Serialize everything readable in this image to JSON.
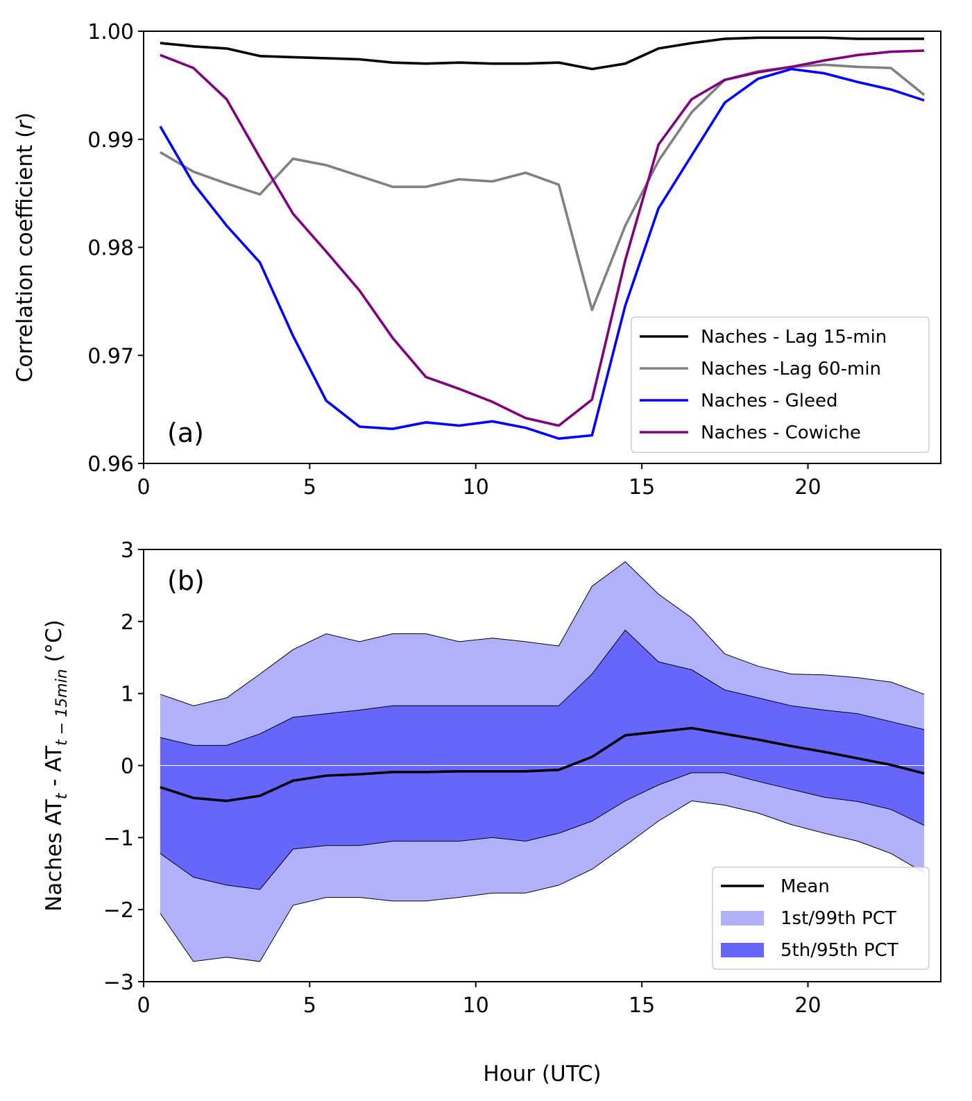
{
  "chart_data": [
    {
      "type": "line",
      "panel_label": "(a)",
      "ylabel": "Correlation coefficient (r)",
      "xlabel": "",
      "xlim": [
        0,
        24
      ],
      "ylim": [
        0.96,
        1.0
      ],
      "xticks": [
        0,
        5,
        10,
        15,
        20
      ],
      "xtick_labels": [
        "0",
        "5",
        "10",
        "15",
        "20"
      ],
      "yticks": [
        0.96,
        0.97,
        0.98,
        0.99,
        1.0
      ],
      "ytick_labels": [
        "0.96",
        "0.97",
        "0.98",
        "0.99",
        "1.00"
      ],
      "legend_position": "lower-right",
      "grid": false,
      "x": [
        0.5,
        1.5,
        2.5,
        3.5,
        4.5,
        5.5,
        6.5,
        7.5,
        8.5,
        9.5,
        10.5,
        11.5,
        12.5,
        13.5,
        14.5,
        15.5,
        16.5,
        17.5,
        18.5,
        19.5,
        20.5,
        21.5,
        22.5,
        23.5
      ],
      "series": [
        {
          "name": "Naches - Lag 15-min",
          "color": "#000000",
          "values": [
            0.9989,
            0.9986,
            0.9984,
            0.9977,
            0.9976,
            0.9975,
            0.9974,
            0.9971,
            0.997,
            0.9971,
            0.997,
            0.997,
            0.9971,
            0.9965,
            0.997,
            0.9984,
            0.9989,
            0.9993,
            0.9994,
            0.9994,
            0.9994,
            0.9993,
            0.9993,
            0.9993
          ]
        },
        {
          "name": "Naches -Lag 60-min",
          "color": "#808080",
          "values": [
            0.9888,
            0.987,
            0.9859,
            0.9849,
            0.9882,
            0.9876,
            0.9866,
            0.9856,
            0.9856,
            0.9863,
            0.9861,
            0.9869,
            0.9858,
            0.9742,
            0.982,
            0.988,
            0.9925,
            0.9955,
            0.9963,
            0.9967,
            0.9969,
            0.9967,
            0.9966,
            0.9941
          ]
        },
        {
          "name": "Naches - Gleed",
          "color": "#0000ff",
          "values": [
            0.9912,
            0.9859,
            0.982,
            0.9786,
            0.9718,
            0.9658,
            0.9634,
            0.9632,
            0.9638,
            0.9635,
            0.9639,
            0.9633,
            0.9623,
            0.9626,
            0.9746,
            0.9836,
            0.9885,
            0.9934,
            0.9956,
            0.9965,
            0.9961,
            0.9953,
            0.9946,
            0.9936
          ]
        },
        {
          "name": "Naches - Cowiche",
          "color": "#800080",
          "values": [
            0.9978,
            0.9966,
            0.9937,
            0.9883,
            0.9831,
            0.9796,
            0.976,
            0.9716,
            0.968,
            0.9669,
            0.9657,
            0.9642,
            0.9635,
            0.9659,
            0.9788,
            0.9895,
            0.9937,
            0.9955,
            0.9962,
            0.9967,
            0.9973,
            0.9978,
            0.9981,
            0.9982
          ]
        }
      ]
    },
    {
      "type": "area",
      "panel_label": "(b)",
      "ylabel_main": "Naches AT",
      "ylabel_sub1": "t",
      "ylabel_mid": " - AT",
      "ylabel_sub2": "t − 15min",
      "ylabel_unit": "  (°C)",
      "xlabel": "Hour (UTC)",
      "xlim": [
        0,
        24
      ],
      "ylim": [
        -3,
        3
      ],
      "xticks": [
        0,
        5,
        10,
        15,
        20
      ],
      "xtick_labels": [
        "0",
        "5",
        "10",
        "15",
        "20"
      ],
      "yticks": [
        -3,
        -2,
        -1,
        0,
        1,
        2,
        3
      ],
      "ytick_labels": [
        "−3",
        "−2",
        "−1",
        "0",
        "1",
        "2",
        "3"
      ],
      "legend_position": "lower-right",
      "grid": false,
      "x": [
        0.5,
        1.5,
        2.5,
        3.5,
        4.5,
        5.5,
        6.5,
        7.5,
        8.5,
        9.5,
        10.5,
        11.5,
        12.5,
        13.5,
        14.5,
        15.5,
        16.5,
        17.5,
        18.5,
        19.5,
        20.5,
        21.5,
        22.5,
        23.5
      ],
      "mean": {
        "name": "Mean",
        "color": "#000000",
        "values": [
          -0.3,
          -0.45,
          -0.49,
          -0.42,
          -0.21,
          -0.14,
          -0.12,
          -0.09,
          -0.09,
          -0.08,
          -0.08,
          -0.08,
          -0.06,
          0.12,
          0.42,
          0.47,
          0.52,
          0.44,
          0.36,
          0.27,
          0.19,
          0.1,
          0.01,
          -0.11
        ]
      },
      "band_outer": {
        "name": "1st/99th PCT",
        "color": "#b0b0fb",
        "upper": [
          0.99,
          0.83,
          0.94,
          1.27,
          1.61,
          1.83,
          1.72,
          1.83,
          1.83,
          1.72,
          1.77,
          1.72,
          1.66,
          2.49,
          2.83,
          2.38,
          2.05,
          1.55,
          1.38,
          1.27,
          1.26,
          1.22,
          1.16,
          0.99
        ],
        "lower": [
          -2.05,
          -2.72,
          -2.66,
          -2.72,
          -1.94,
          -1.83,
          -1.83,
          -1.88,
          -1.88,
          -1.83,
          -1.77,
          -1.77,
          -1.66,
          -1.44,
          -1.11,
          -0.77,
          -0.49,
          -0.55,
          -0.66,
          -0.82,
          -0.94,
          -1.05,
          -1.22,
          -1.49
        ]
      },
      "band_inner": {
        "name": "5th/95th PCT",
        "color": "#6666fd",
        "upper": [
          0.39,
          0.28,
          0.28,
          0.44,
          0.67,
          0.72,
          0.77,
          0.83,
          0.83,
          0.83,
          0.83,
          0.83,
          0.83,
          1.27,
          1.88,
          1.44,
          1.33,
          1.05,
          0.94,
          0.83,
          0.77,
          0.72,
          0.61,
          0.5
        ],
        "lower": [
          -1.22,
          -1.55,
          -1.66,
          -1.72,
          -1.16,
          -1.11,
          -1.11,
          -1.05,
          -1.05,
          -1.05,
          -1.0,
          -1.05,
          -0.94,
          -0.77,
          -0.49,
          -0.27,
          -0.1,
          -0.1,
          -0.22,
          -0.33,
          -0.44,
          -0.5,
          -0.61,
          -0.83
        ]
      }
    }
  ]
}
